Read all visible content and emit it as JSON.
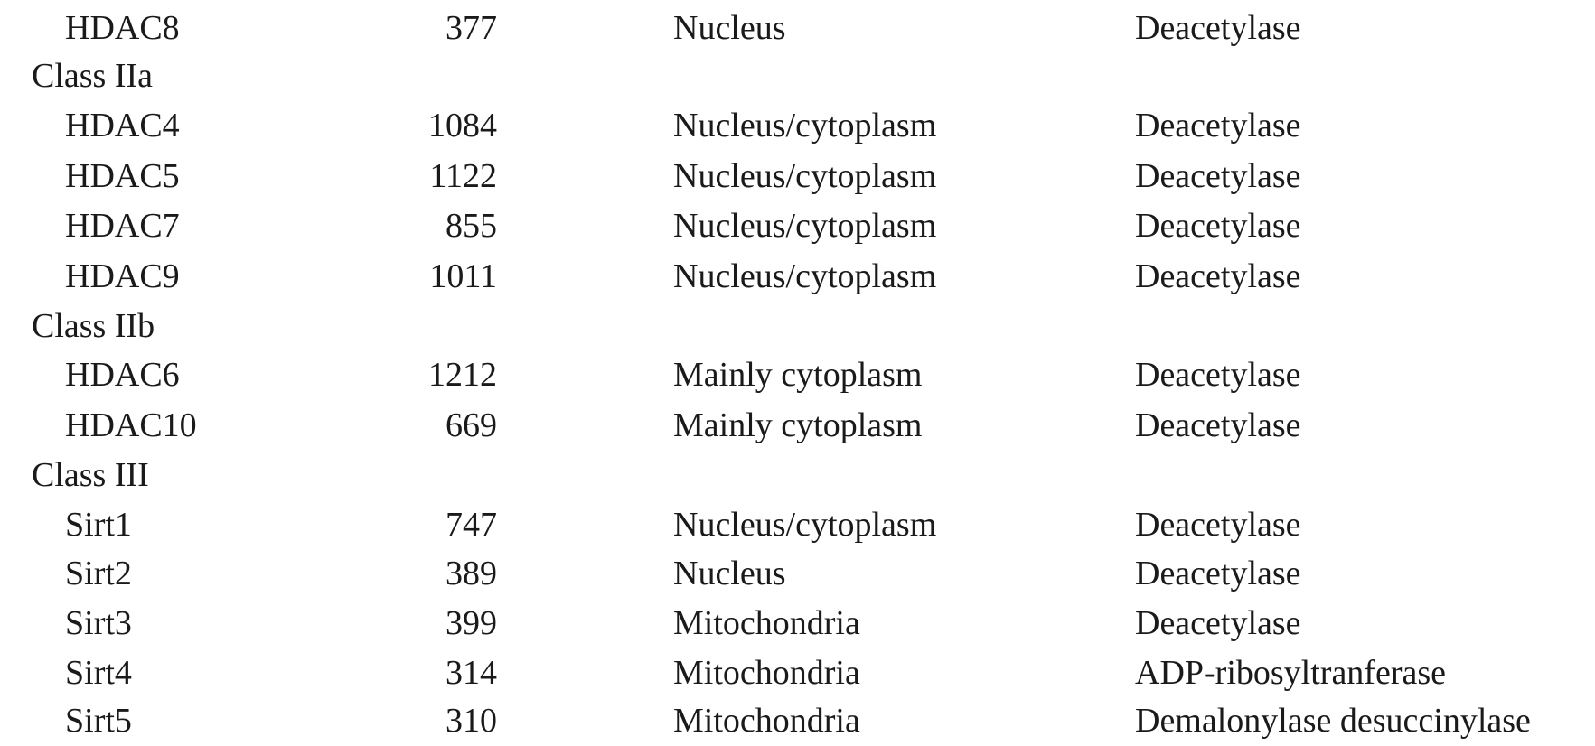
{
  "rows": [
    {
      "kind": "member",
      "name": "HDAC8",
      "length": "377",
      "localization": "Nucleus",
      "function": "Deacetylase"
    },
    {
      "kind": "class",
      "name": "Class IIa"
    },
    {
      "kind": "member",
      "name": "HDAC4",
      "length": "1084",
      "localization": "Nucleus/cytoplasm",
      "function": "Deacetylase"
    },
    {
      "kind": "member",
      "name": "HDAC5",
      "length": "1122",
      "localization": "Nucleus/cytoplasm",
      "function": "Deacetylase"
    },
    {
      "kind": "member",
      "name": "HDAC7",
      "length": "855",
      "localization": "Nucleus/cytoplasm",
      "function": "Deacetylase"
    },
    {
      "kind": "member",
      "name": "HDAC9",
      "length": "1011",
      "localization": "Nucleus/cytoplasm",
      "function": "Deacetylase"
    },
    {
      "kind": "class",
      "name": "Class IIb"
    },
    {
      "kind": "member",
      "name": "HDAC6",
      "length": "1212",
      "localization": "Mainly cytoplasm",
      "function": "Deacetylase"
    },
    {
      "kind": "member",
      "name": "HDAC10",
      "length": "669",
      "localization": "Mainly cytoplasm",
      "function": "Deacetylase"
    },
    {
      "kind": "class",
      "name": "Class III"
    },
    {
      "kind": "member",
      "name": "Sirt1",
      "length": "747",
      "localization": "Nucleus/cytoplasm",
      "function": "Deacetylase"
    },
    {
      "kind": "member",
      "name": "Sirt2",
      "length": "389",
      "localization": "Nucleus",
      "function": "Deacetylase"
    },
    {
      "kind": "member",
      "name": "Sirt3",
      "length": "399",
      "localization": "Mitochondria",
      "function": "Deacetylase"
    },
    {
      "kind": "member",
      "name": "Sirt4",
      "length": "314",
      "localization": "Mitochondria",
      "function": "ADP-ribosyltranferase"
    },
    {
      "kind": "member",
      "name": "Sirt5",
      "length": "310",
      "localization": "Mitochondria",
      "function": "Demalonylase desuccinylase"
    }
  ]
}
